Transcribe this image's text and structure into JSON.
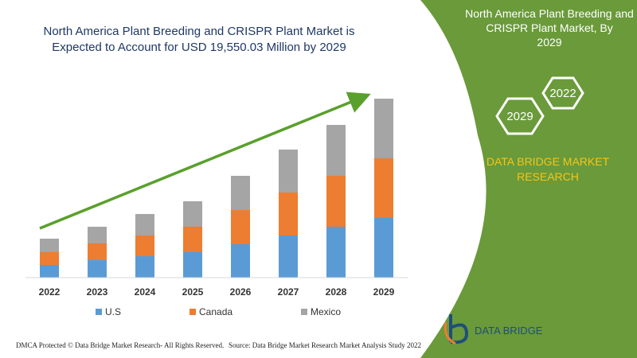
{
  "chart_data": {
    "type": "stacked-bar",
    "title": "North America Plant Breeding and CRISPR Plant Market is Expected to Account for USD 19,550.03 Million by 2029",
    "categories": [
      "2022",
      "2023",
      "2024",
      "2025",
      "2026",
      "2027",
      "2028",
      "2029"
    ],
    "series": [
      {
        "name": "U.S",
        "color": "#5b9bd5",
        "values": [
          16,
          22,
          27,
          32,
          42,
          53,
          64,
          75
        ]
      },
      {
        "name": "Canada",
        "color": "#ed7d31",
        "values": [
          16,
          21,
          26,
          32,
          43,
          54,
          64,
          75
        ]
      },
      {
        "name": "Mexico",
        "color": "#a5a5a5",
        "values": [
          17,
          21,
          27,
          32,
          43,
          54,
          64,
          75
        ]
      }
    ]
  },
  "panel": {
    "title": "North America Plant Breeding and CRISPR Plant Market, By 2029",
    "hex_top": "2022",
    "hex_bottom": "2029",
    "brand": "DATA BRIDGE MARKET RESEARCH"
  },
  "logo": {
    "name": "DATA BRIDGE"
  },
  "footer": {
    "left": "DMCA Protected © Data Bridge Market Research- All Rights Reserved.",
    "right": "Source: Data Bridge Market Research Market Analysis Study 2022"
  }
}
